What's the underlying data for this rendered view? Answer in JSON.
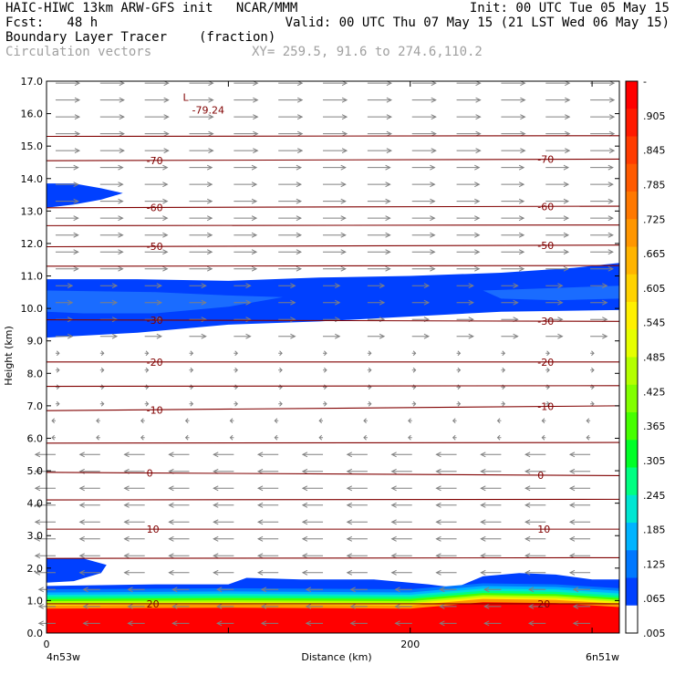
{
  "header": {
    "line1_left": "HAIC-HIWC 13km ARW-GFS init   NCAR/MMM",
    "line1_right": "Init: 00 UTC Tue 05 May 15",
    "line2_left": "Fcst:   48 h",
    "line2_right": "Valid: 00 UTC Thu 07 May 15 (21 LST Wed 06 May 15)",
    "line3_left": "Boundary Layer Tracer",
    "line3_unit": "(fraction)",
    "line4_left": "Circulation vectors",
    "line4_xy": "XY= 259.5, 91.6 to 274.6,110.2"
  },
  "chart_data": {
    "type": "heatmap",
    "xlabel": "Distance (km)",
    "ylabel": "Height (km)",
    "xlim": [
      0,
      315
    ],
    "ylim": [
      0,
      17
    ],
    "x_ticks": [
      0,
      100,
      200,
      300
    ],
    "x_tick_labels": [
      "0",
      "",
      "200",
      ""
    ],
    "x_end_labels": {
      "left": "4n53w",
      "right": "6n51w"
    },
    "y_ticks": [
      0,
      1,
      2,
      3,
      4,
      5,
      6,
      7,
      8,
      9,
      10,
      11,
      12,
      13,
      14,
      15,
      16,
      17
    ],
    "y_tick_labels": [
      "0.0",
      "1.0",
      "2.0",
      "3.0",
      "4.0",
      "5.0",
      "6.0",
      "7.0",
      "8.0",
      "9.0",
      "10.0",
      "11.0",
      "12.0",
      "13.0",
      "14.0",
      "15.0",
      "16.0",
      "17.0"
    ],
    "colorbar": {
      "labels": [
        "-",
        ".905",
        ".845",
        ".785",
        ".725",
        ".665",
        ".605",
        ".545",
        ".485",
        ".425",
        ".365",
        ".305",
        ".245",
        ".185",
        ".125",
        ".065",
        ".005"
      ],
      "colors": [
        "#ff0000",
        "#ff1a00",
        "#ff3c00",
        "#ff5a00",
        "#ff7800",
        "#ff9600",
        "#ffb400",
        "#ffd200",
        "#fff000",
        "#e6ff00",
        "#b4ff00",
        "#82ff00",
        "#46ff00",
        "#00ff28",
        "#00ff82",
        "#00e6d2",
        "#00b4ff",
        "#0078ff",
        "#0040ff",
        "#ffffff"
      ]
    },
    "temperature_contours": [
      {
        "label": "-70",
        "heights": [
          14.55,
          14.6
        ]
      },
      {
        "label": "-60",
        "heights": [
          13.1,
          13.15
        ]
      },
      {
        "label": "-50",
        "heights": [
          11.9,
          11.95
        ]
      },
      {
        "label": "-30",
        "heights": [
          9.65,
          9.6
        ]
      },
      {
        "label": "-20",
        "heights": [
          8.35,
          8.35
        ]
      },
      {
        "label": "-10",
        "heights": [
          6.85,
          7.0
        ]
      },
      {
        "label": "0",
        "heights": [
          4.95,
          4.85
        ]
      },
      {
        "label": "10",
        "heights": [
          3.2,
          3.2
        ]
      },
      {
        "label": "20",
        "heights": [
          0.9,
          0.9
        ]
      }
    ],
    "annotations": [
      {
        "text": "L",
        "x": 75,
        "y": 16.4
      },
      {
        "text": "-79.24",
        "x": 80,
        "y": 16.0
      }
    ]
  }
}
